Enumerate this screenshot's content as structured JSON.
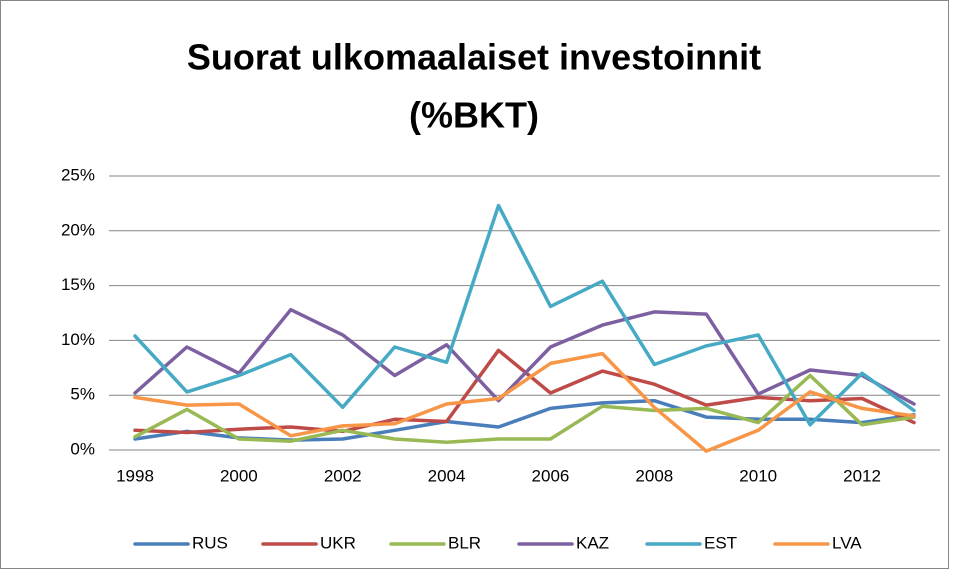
{
  "chart_data": {
    "type": "line",
    "title": [
      "Suorat ulkomaalaiset investoinnit",
      "(%BKT)"
    ],
    "x": [
      1998,
      1999,
      2000,
      2001,
      2002,
      2003,
      2004,
      2005,
      2006,
      2007,
      2008,
      2009,
      2010,
      2011,
      2012,
      2013
    ],
    "xlim": [
      1998,
      2013
    ],
    "xticks": [
      1998,
      2000,
      2002,
      2004,
      2006,
      2008,
      2010,
      2012
    ],
    "ylim": [
      0,
      25
    ],
    "yticks": [
      {
        "value": 0,
        "label": "0%"
      },
      {
        "value": 5,
        "label": "5%"
      },
      {
        "value": 10,
        "label": "10%"
      },
      {
        "value": 15,
        "label": "15%"
      },
      {
        "value": 20,
        "label": "20%"
      },
      {
        "value": 25,
        "label": "25%"
      }
    ],
    "grid": true,
    "legend": "bottom",
    "series": [
      {
        "name": "RUS",
        "color": "#4a7ebb",
        "values": [
          1.0,
          1.7,
          1.1,
          0.9,
          1.0,
          1.8,
          2.6,
          2.1,
          3.8,
          4.3,
          4.5,
          3.0,
          2.8,
          2.8,
          2.5,
          3.2
        ]
      },
      {
        "name": "UKR",
        "color": "#be4b48",
        "values": [
          1.8,
          1.6,
          1.9,
          2.1,
          1.7,
          2.8,
          2.6,
          9.1,
          5.2,
          7.2,
          6.0,
          4.1,
          4.8,
          4.5,
          4.7,
          2.5
        ]
      },
      {
        "name": "BLR",
        "color": "#98b954",
        "values": [
          1.2,
          3.7,
          1.0,
          0.8,
          1.8,
          1.0,
          0.7,
          1.0,
          1.0,
          4.0,
          3.6,
          3.8,
          2.5,
          6.8,
          2.3,
          3.0
        ]
      },
      {
        "name": "KAZ",
        "color": "#7d60a0",
        "values": [
          5.2,
          9.4,
          7.0,
          12.8,
          10.5,
          6.8,
          9.6,
          4.5,
          9.4,
          11.4,
          12.6,
          12.4,
          5.1,
          7.3,
          6.8,
          4.2
        ]
      },
      {
        "name": "EST",
        "color": "#46aac5",
        "values": [
          10.4,
          5.3,
          6.8,
          8.7,
          3.9,
          9.4,
          8.0,
          22.3,
          13.1,
          15.4,
          7.8,
          9.5,
          10.5,
          2.3,
          7.0,
          3.6
        ]
      },
      {
        "name": "LVA",
        "color": "#f79646",
        "values": [
          4.8,
          4.1,
          4.2,
          1.3,
          2.2,
          2.4,
          4.2,
          4.7,
          7.9,
          8.8,
          3.9,
          -0.1,
          1.8,
          5.3,
          3.8,
          3.1
        ]
      }
    ]
  }
}
